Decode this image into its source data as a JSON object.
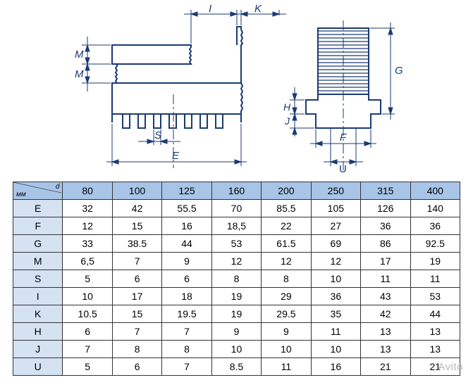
{
  "style": {
    "header_bg": "#a8c5e8",
    "rowheader_bg": "#d4e2f2",
    "cell_bg": "#ffffff",
    "border_color": "#333333",
    "text_color": "#000000",
    "font_size": 14,
    "diagram_stroke": "#1a3a73",
    "watermark_color": "#b8b8b8"
  },
  "diagram": {
    "type": "technical-drawing",
    "labels": [
      "I",
      "K",
      "M",
      "M",
      "S",
      "E",
      "G",
      "H",
      "J",
      "F",
      "U"
    ]
  },
  "table": {
    "type": "table",
    "corner_label_left": "мм",
    "corner_label_right": "d",
    "columns": [
      "80",
      "100",
      "125",
      "160",
      "200",
      "250",
      "315",
      "400"
    ],
    "row_labels": [
      "E",
      "F",
      "G",
      "M",
      "S",
      "I",
      "K",
      "H",
      "J",
      "U"
    ],
    "rows": [
      [
        "32",
        "42",
        "55.5",
        "70",
        "85.5",
        "105",
        "126",
        "140"
      ],
      [
        "12",
        "15",
        "16",
        "18,5",
        "22",
        "27",
        "36",
        "36"
      ],
      [
        "33",
        "38.5",
        "44",
        "53",
        "61.5",
        "69",
        "86",
        "92.5"
      ],
      [
        "6,5",
        "7",
        "9",
        "12",
        "12",
        "12",
        "17",
        "19"
      ],
      [
        "5",
        "6",
        "6",
        "8",
        "8",
        "10",
        "11",
        "11"
      ],
      [
        "10",
        "17",
        "18",
        "19",
        "29",
        "36",
        "43",
        "53"
      ],
      [
        "10.5",
        "15",
        "19.5",
        "19",
        "29.5",
        "35",
        "42",
        "44"
      ],
      [
        "6",
        "7",
        "7",
        "9",
        "9",
        "11",
        "13",
        "13"
      ],
      [
        "7",
        "8",
        "8",
        "10",
        "10",
        "10",
        "13",
        "13"
      ],
      [
        "5",
        "6",
        "7",
        "8.5",
        "11",
        "16",
        "21",
        "21"
      ]
    ]
  },
  "watermark": "Avito"
}
